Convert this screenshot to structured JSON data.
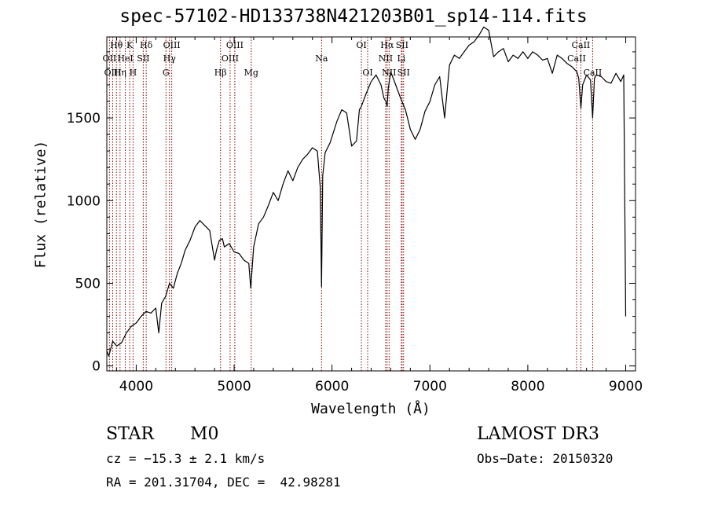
{
  "chart_data": {
    "type": "line",
    "title": "spec-57102-HD133738N421203B01_sp14-114.fits",
    "xlabel": "Wavelength (Å)",
    "ylabel": "Flux (relative)",
    "xlim": [
      3700,
      9100
    ],
    "ylim": [
      -30,
      1990
    ],
    "xticks": [
      4000,
      5000,
      6000,
      7000,
      8000,
      9000
    ],
    "yticks": [
      0,
      500,
      1000,
      1500
    ],
    "series": [
      {
        "x": [
          3700,
          3720,
          3760,
          3800,
          3850,
          3900,
          3950,
          4000,
          4050,
          4100,
          4150,
          4200,
          4230,
          4260,
          4300,
          4340,
          4380,
          4420,
          4460,
          4500,
          4550,
          4600,
          4650,
          4700,
          4750,
          4800,
          4820,
          4850,
          4880,
          4900,
          4950,
          5000,
          5050,
          5100,
          5150,
          5170,
          5200,
          5250,
          5300,
          5350,
          5400,
          5450,
          5500,
          5550,
          5600,
          5650,
          5700,
          5750,
          5800,
          5850,
          5880,
          5893,
          5905,
          5930,
          5980,
          6050,
          6100,
          6150,
          6200,
          6250,
          6280,
          6300,
          6350,
          6400,
          6450,
          6500,
          6530,
          6550,
          6563,
          6575,
          6600,
          6650,
          6700,
          6750,
          6800,
          6850,
          6900,
          6950,
          7000,
          7050,
          7100,
          7150,
          7200,
          7250,
          7300,
          7350,
          7400,
          7450,
          7500,
          7550,
          7600,
          7650,
          7700,
          7750,
          7800,
          7850,
          7900,
          7950,
          8000,
          8050,
          8100,
          8150,
          8200,
          8250,
          8300,
          8350,
          8400,
          8450,
          8500,
          8520,
          8542,
          8560,
          8600,
          8640,
          8662,
          8680,
          8700,
          8750,
          8800,
          8850,
          8900,
          8950,
          8980,
          9000
        ],
        "y": [
          90,
          60,
          150,
          120,
          140,
          200,
          240,
          260,
          300,
          330,
          320,
          350,
          200,
          380,
          420,
          500,
          470,
          560,
          620,
          700,
          760,
          840,
          880,
          850,
          820,
          640,
          700,
          760,
          770,
          720,
          740,
          690,
          680,
          640,
          620,
          470,
          720,
          860,
          900,
          970,
          1050,
          1000,
          1100,
          1180,
          1120,
          1200,
          1250,
          1280,
          1320,
          1300,
          1080,
          480,
          1150,
          1290,
          1350,
          1480,
          1550,
          1530,
          1330,
          1360,
          1550,
          1570,
          1650,
          1720,
          1760,
          1700,
          1620,
          1600,
          1570,
          1680,
          1780,
          1700,
          1620,
          1550,
          1430,
          1370,
          1430,
          1540,
          1600,
          1700,
          1750,
          1500,
          1820,
          1880,
          1860,
          1900,
          1940,
          1960,
          2000,
          2050,
          2030,
          1870,
          1900,
          1920,
          1840,
          1880,
          1860,
          1900,
          1860,
          1900,
          1880,
          1850,
          1860,
          1770,
          1880,
          1860,
          1830,
          1810,
          1780,
          1740,
          1560,
          1700,
          1760,
          1730,
          1500,
          1740,
          1760,
          1750,
          1720,
          1710,
          1770,
          1720,
          1760,
          300
        ]
      }
    ],
    "lines": [
      {
        "name": "Hθ",
        "x": 3798,
        "row": 0
      },
      {
        "name": "OII",
        "x": 3727,
        "row": 1
      },
      {
        "name": "OIII",
        "x": 3760,
        "row": 2
      },
      {
        "name": "Hη",
        "x": 3835,
        "row": 2
      },
      {
        "name": "K",
        "x": 3934,
        "row": 0
      },
      {
        "name": "HeI",
        "x": 3889,
        "row": 1
      },
      {
        "name": "H",
        "x": 3968,
        "row": 2
      },
      {
        "name": "SII",
        "x": 4072,
        "row": 1
      },
      {
        "name": "Hδ",
        "x": 4102,
        "row": 0
      },
      {
        "name": "OIII",
        "x": 4363,
        "row": 0
      },
      {
        "name": "Hγ",
        "x": 4340,
        "row": 1
      },
      {
        "name": "G",
        "x": 4304,
        "row": 2
      },
      {
        "name": "Hβ",
        "x": 4861,
        "row": 2
      },
      {
        "name": "OIII",
        "x": 5007,
        "row": 0
      },
      {
        "name": "OIII",
        "x": 4959,
        "row": 1
      },
      {
        "name": "Mg",
        "x": 5175,
        "row": 2
      },
      {
        "name": "Na",
        "x": 5893,
        "row": 1
      },
      {
        "name": "OI",
        "x": 6300,
        "row": 0
      },
      {
        "name": "OI",
        "x": 6364,
        "row": 2
      },
      {
        "name": "Hα",
        "x": 6563,
        "row": 0
      },
      {
        "name": "NII",
        "x": 6548,
        "row": 1
      },
      {
        "name": "NII",
        "x": 6583,
        "row": 2
      },
      {
        "name": "SII",
        "x": 6716,
        "row": 0
      },
      {
        "name": "Li",
        "x": 6708,
        "row": 1
      },
      {
        "name": "SII",
        "x": 6731,
        "row": 2
      },
      {
        "name": "CaII",
        "x": 8542,
        "row": 0
      },
      {
        "name": "CaII",
        "x": 8498,
        "row": 1
      },
      {
        "name": "CaII",
        "x": 8662,
        "row": 2
      }
    ],
    "grid": false,
    "line_color": "#000000",
    "marker_color": "#8b0000"
  },
  "info": {
    "class": "STAR",
    "subclass": "M0",
    "survey": "LAMOST DR3",
    "cz": "cz = −15.3 ± 2.1 km/s",
    "obs_date": "Obs−Date: 20150320",
    "radec": "RA = 201.31704, DEC =  42.98281"
  }
}
